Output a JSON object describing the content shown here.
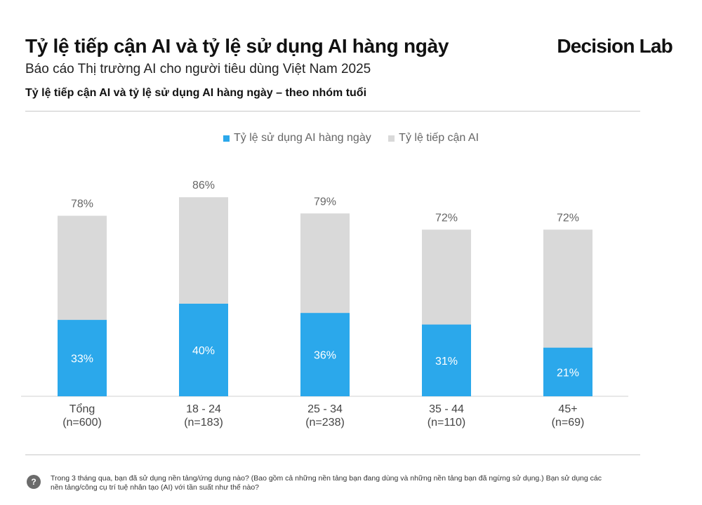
{
  "header": {
    "title": "Tỷ lệ tiếp cận AI và tỷ lệ sử dụng AI hàng ngày",
    "subtitle": "Báo cáo Thị trường AI cho người tiêu dùng Việt Nam 2025",
    "section_title": "Tỷ lệ tiếp cận AI và tỷ lệ sử dụng AI hàng ngày – theo nhóm tuổi",
    "brand": "Decision Lab"
  },
  "colors": {
    "daily": "#2BA8EB",
    "reach": "#D9D9D9",
    "value_label": "#666666"
  },
  "chart_data": {
    "type": "bar",
    "layout": "overlapping",
    "categories": [
      "Tổng",
      "18 - 24",
      "25 - 34",
      "35 - 44",
      "45+"
    ],
    "category_n": [
      "(n=600)",
      "(n=183)",
      "(n=238)",
      "(n=110)",
      "(n=69)"
    ],
    "series": [
      {
        "name": "Tỷ lệ sử dụng AI hàng ngày",
        "values": [
          33,
          40,
          36,
          31,
          21
        ],
        "labels": [
          "33%",
          "40%",
          "36%",
          "31%",
          "21%"
        ]
      },
      {
        "name": "Tỷ lệ tiếp cận AI",
        "values": [
          78,
          86,
          79,
          72,
          72
        ],
        "labels": [
          "78%",
          "86%",
          "79%",
          "72%",
          "72%"
        ]
      }
    ],
    "ylim": [
      0,
      100
    ],
    "grid": false,
    "legend_position": "top-center"
  },
  "footnote": {
    "icon": "question-icon",
    "icon_glyph": "?",
    "text": "Trong 3 tháng qua, bạn đã sử dụng nền tảng/ứng dụng nào? (Bao gồm cả những nền tảng bạn đang dùng và những nền tảng bạn đã ngừng sử dụng.) Bạn sử dụng các nền tảng/công cụ trí tuệ nhân tạo (AI) với tần suất như thế nào?"
  }
}
